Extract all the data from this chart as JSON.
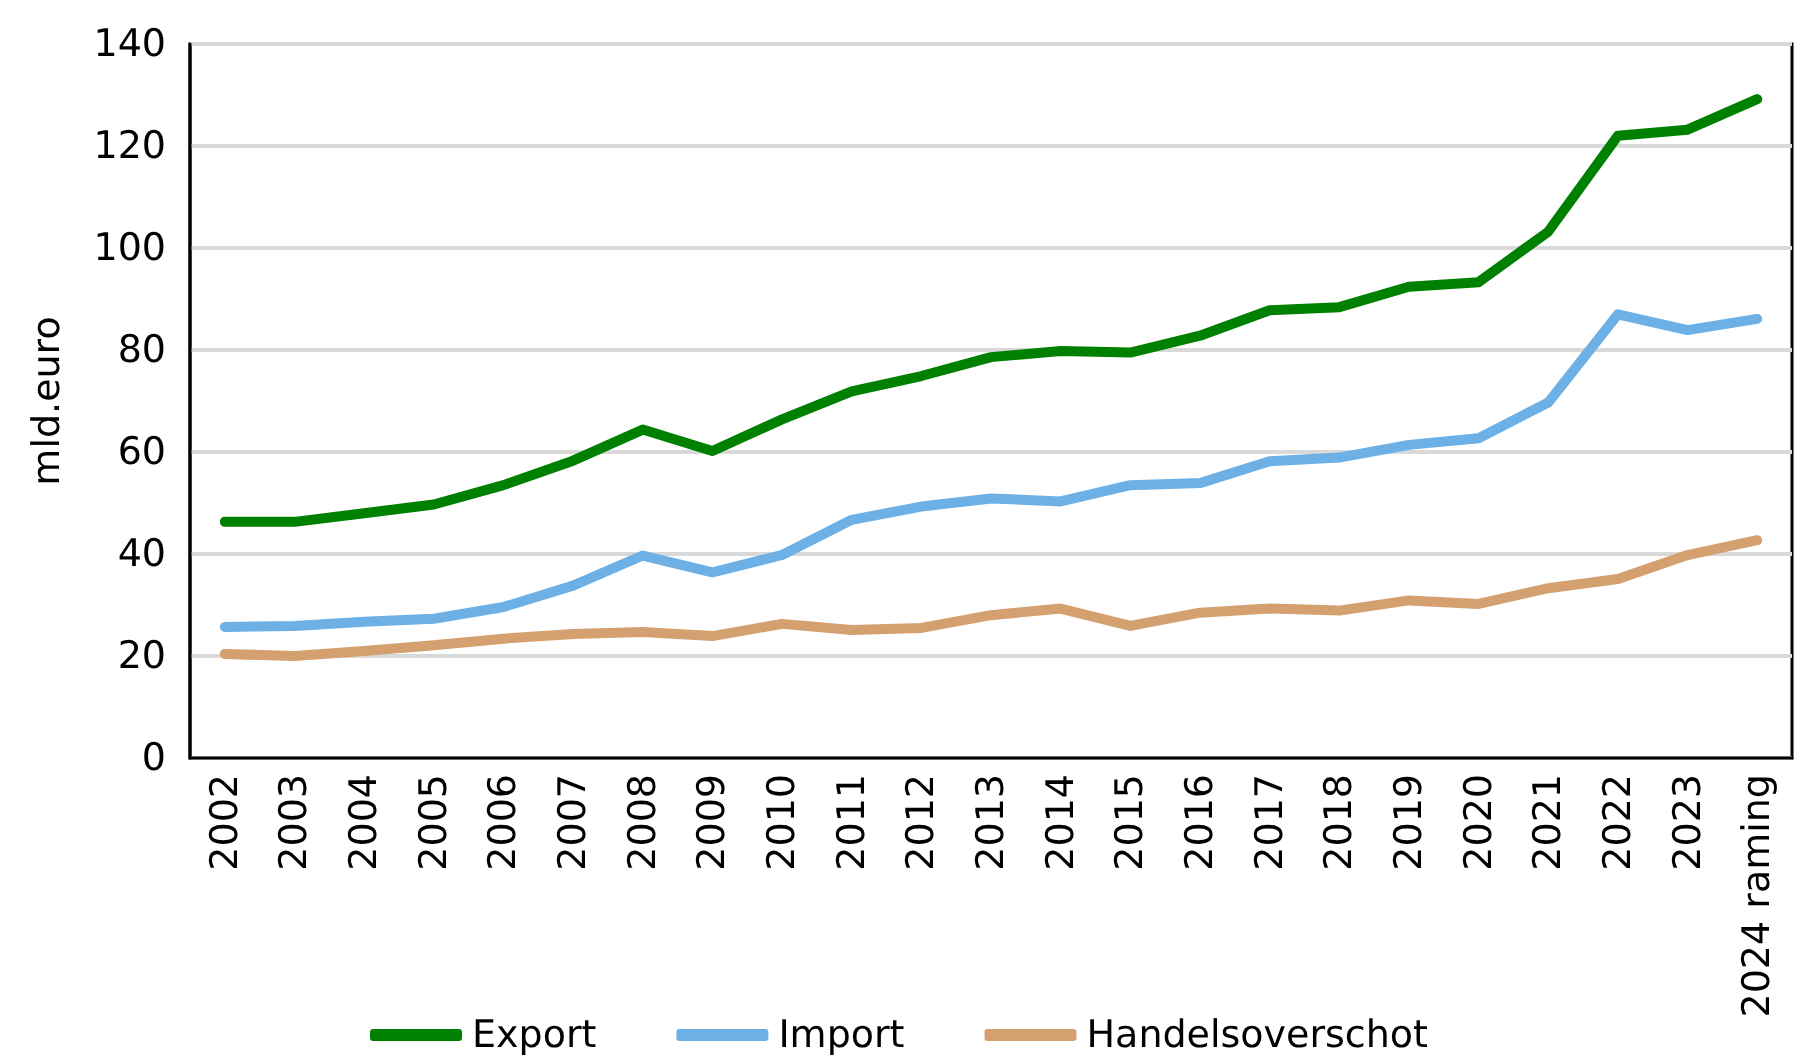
{
  "chart_data": {
    "type": "line",
    "ylabel": "mld.euro",
    "categories": [
      "2002",
      "2003",
      "2004",
      "2005",
      "2006",
      "2007",
      "2008",
      "2009",
      "2010",
      "2011",
      "2012",
      "2013",
      "2014",
      "2015",
      "2016",
      "2017",
      "2018",
      "2019",
      "2020",
      "2021",
      "2022",
      "2023",
      "2024 raming"
    ],
    "series": [
      {
        "name": "Export",
        "color": "#008000",
        "values": [
          46.3,
          46.3,
          48,
          49.7,
          53.5,
          58.3,
          64.4,
          60.2,
          66.4,
          71.9,
          74.9,
          78.6,
          79.8,
          79.5,
          82.8,
          87.8,
          88.4,
          92.4,
          93.3,
          103.2,
          122,
          123.2,
          129.2
        ]
      },
      {
        "name": "Import",
        "color": "#6cb0e6",
        "values": [
          25.7,
          25.9,
          26.7,
          27.3,
          29.6,
          33.8,
          39.7,
          36.4,
          39.8,
          46.7,
          49.3,
          50.9,
          50.3,
          53.5,
          53.9,
          58.2,
          58.9,
          61.4,
          62.7,
          69.7,
          87,
          83.9,
          86.1
        ]
      },
      {
        "name": "Handelsoverschot",
        "color": "#d4a070",
        "values": [
          20.4,
          20,
          21,
          22.1,
          23.4,
          24.3,
          24.7,
          23.9,
          26.3,
          25.1,
          25.5,
          28,
          29.3,
          25.9,
          28.5,
          29.3,
          28.9,
          30.9,
          30.2,
          33.3,
          35.1,
          39.8,
          42.7
        ]
      }
    ],
    "ylim": [
      0,
      140
    ],
    "yticks": [
      0,
      20,
      40,
      60,
      80,
      100,
      120,
      140
    ],
    "grid": "y",
    "legend": "bottom",
    "line_style": "solid"
  }
}
